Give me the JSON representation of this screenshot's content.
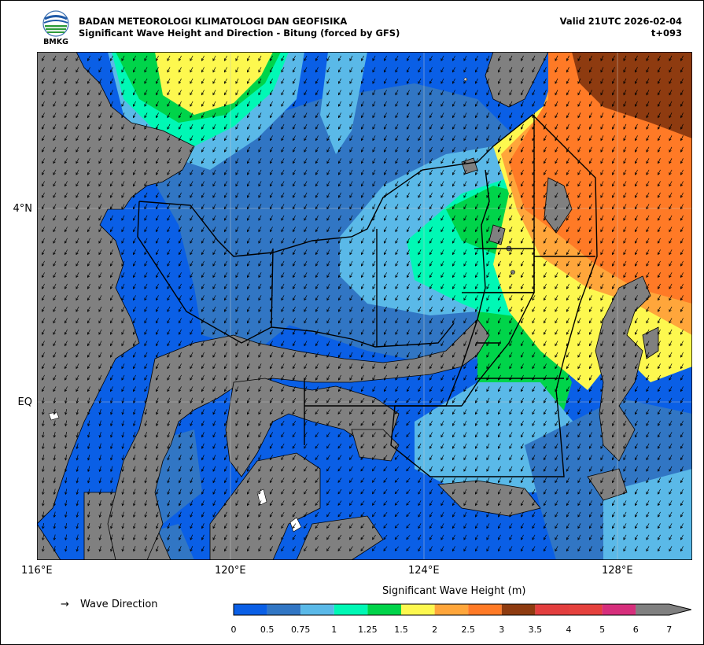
{
  "header": {
    "agency": "BADAN METEOROLOGI KLIMATOLOGI DAN GEOFISIKA",
    "subtitle": "Significant Wave Height and Direction - Bitung (forced by GFS)",
    "valid": "Valid 21UTC 2026-02-04",
    "forecast_step": "t+093",
    "logo_text": "BMKG"
  },
  "axes": {
    "lon_labels": [
      "116°E",
      "120°E",
      "124°E",
      "128°E"
    ],
    "lat_labels": [
      "4°N",
      "EQ"
    ]
  },
  "legend": {
    "arrow_symbol": "→",
    "label": "Wave Direction"
  },
  "colorbar": {
    "title": "Significant Wave Height (m)",
    "ticks": [
      "0",
      "0.5",
      "0.75",
      "1",
      "1.25",
      "1.5",
      "2",
      "2.5",
      "3",
      "3.5",
      "4",
      "5",
      "6",
      "7"
    ],
    "colors": [
      "#0a5fe6",
      "#3176c4",
      "#5ab9e8",
      "#00f8b5",
      "#00d44a",
      "#fdf84f",
      "#ffa63b",
      "#ff7a26",
      "#8e3b10",
      "#e33e3e",
      "#e5413d",
      "#d62f7c",
      "#d62f7c"
    ],
    "land_color": "#808080"
  }
}
